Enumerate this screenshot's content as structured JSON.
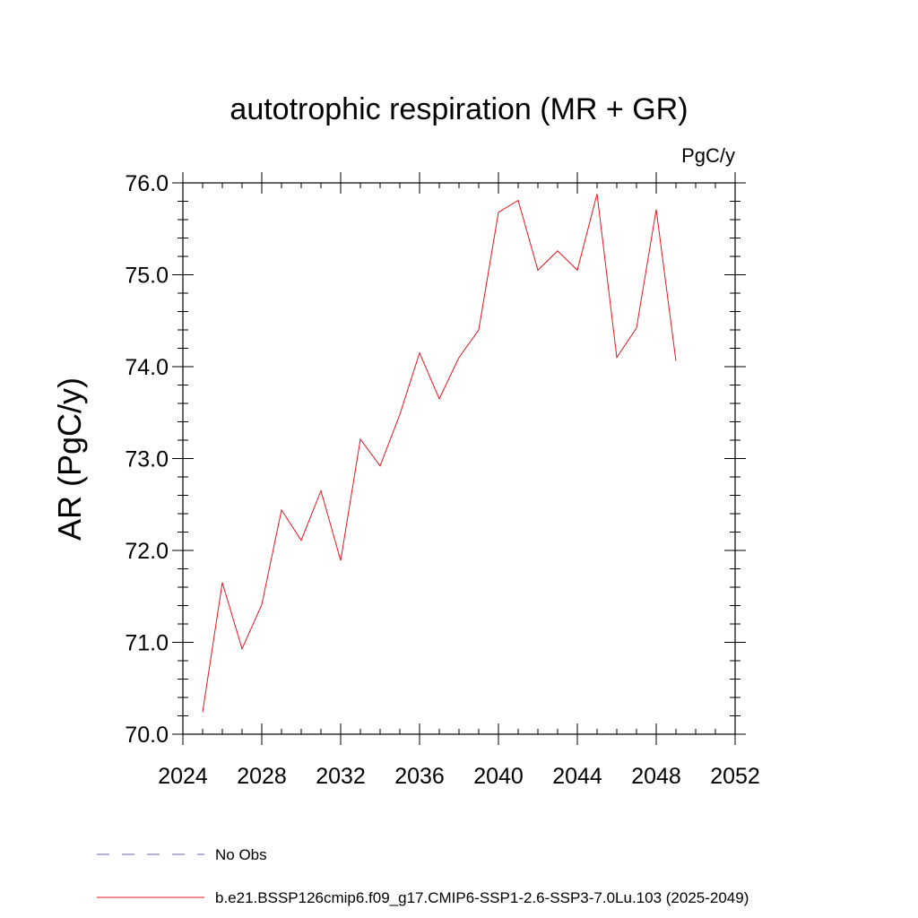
{
  "chart_data": {
    "type": "line",
    "title": "autotrophic respiration (MR + GR)",
    "units_label": "PgC/y",
    "ylabel": "AR  (PgC/y)",
    "xlabel": "",
    "xlim": [
      2024,
      2052
    ],
    "ylim": [
      70.0,
      76.0
    ],
    "xticks": [
      "2024",
      "2028",
      "2032",
      "2036",
      "2040",
      "2044",
      "2048",
      "2052"
    ],
    "yticks": [
      "70.0",
      "71.0",
      "72.0",
      "73.0",
      "74.0",
      "75.0",
      "76.0"
    ],
    "series": [
      {
        "name": "b.e21.BSSP126cmip6.f09_g17.CMIP6-SSP1-2.6-SSP3-7.0Lu.103 (2025-2049)",
        "color": "#e8141e",
        "x": [
          2025,
          2026,
          2027,
          2028,
          2029,
          2030,
          2031,
          2032,
          2033,
          2034,
          2035,
          2036,
          2037,
          2038,
          2039,
          2040,
          2041,
          2042,
          2043,
          2044,
          2045,
          2046,
          2047,
          2048,
          2049
        ],
        "values": [
          70.24,
          71.65,
          70.93,
          71.41,
          72.44,
          72.11,
          72.65,
          71.89,
          73.21,
          72.92,
          73.48,
          74.15,
          73.65,
          74.1,
          74.4,
          75.68,
          75.81,
          75.05,
          75.26,
          75.05,
          75.88,
          74.1,
          74.42,
          75.71,
          74.06
        ]
      }
    ],
    "legend": {
      "placement": "bottom",
      "entries": [
        {
          "label": "No Obs",
          "style": "dashed",
          "color": "#6b5fa8"
        },
        {
          "label": "b.e21.BSSP126cmip6.f09_g17.CMIP6-SSP1-2.6-SSP3-7.0Lu.103 (2025-2049)",
          "style": "solid",
          "color": "#e8141e"
        }
      ]
    }
  }
}
